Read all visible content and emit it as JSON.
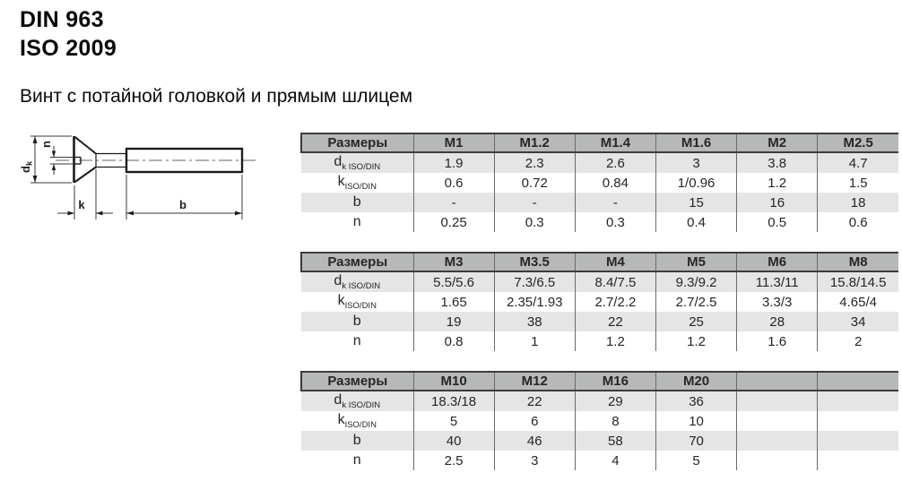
{
  "page": {
    "title_line1": "DIN 963",
    "title_line2": "ISO 2009",
    "subtitle": "Винт с потайной головкой и прямым шлицем"
  },
  "drawing": {
    "description": "countersunk-flat-head-slotted-screw-side-view",
    "labels": {
      "dk_main": "d",
      "dk_sub": "k",
      "n": "n",
      "k": "k",
      "b": "b"
    }
  },
  "colors": {
    "table_header_bg": "#b7b9b8",
    "table_alt_row_bg": "#e4e5e4",
    "table_border_dark": "#3c3c3c",
    "table_separator": "#6a6a6a",
    "text": "#262626"
  },
  "tables": [
    {
      "columns": [
        "Размеры",
        "M1",
        "M1.2",
        "M1.4",
        "M1.6",
        "M2",
        "M2.5"
      ],
      "rows": [
        {
          "label": {
            "main": "d",
            "sub": "k ISO/DIN"
          },
          "values": [
            "1.9",
            "2.3",
            "2.6",
            "3",
            "3.8",
            "4.7"
          ]
        },
        {
          "label": {
            "main": "k",
            "sub": "ISO/DIN"
          },
          "values": [
            "0.6",
            "0.72",
            "0.84",
            "1/0.96",
            "1.2",
            "1.5"
          ]
        },
        {
          "label": {
            "main": "b",
            "sub": ""
          },
          "values": [
            "-",
            "-",
            "-",
            "15",
            "16",
            "18"
          ]
        },
        {
          "label": {
            "main": "n",
            "sub": ""
          },
          "values": [
            "0.25",
            "0.3",
            "0.3",
            "0.4",
            "0.5",
            "0.6"
          ]
        }
      ]
    },
    {
      "columns": [
        "Размеры",
        "M3",
        "M3.5",
        "M4",
        "M5",
        "M6",
        "M8"
      ],
      "rows": [
        {
          "label": {
            "main": "d",
            "sub": "k ISO/DIN"
          },
          "values": [
            "5.5/5.6",
            "7.3/6.5",
            "8.4/7.5",
            "9.3/9.2",
            "11.3/11",
            "15.8/14.5"
          ]
        },
        {
          "label": {
            "main": "k",
            "sub": "ISO/DIN"
          },
          "values": [
            "1.65",
            "2.35/1.93",
            "2.7/2.2",
            "2.7/2.5",
            "3.3/3",
            "4.65/4"
          ]
        },
        {
          "label": {
            "main": "b",
            "sub": ""
          },
          "values": [
            "19",
            "38",
            "22",
            "25",
            "28",
            "34"
          ]
        },
        {
          "label": {
            "main": "n",
            "sub": ""
          },
          "values": [
            "0.8",
            "1",
            "1.2",
            "1.2",
            "1.6",
            "2"
          ]
        }
      ]
    },
    {
      "columns": [
        "Размеры",
        "M10",
        "M12",
        "M16",
        "M20",
        "",
        ""
      ],
      "rows": [
        {
          "label": {
            "main": "d",
            "sub": "k ISO/DIN"
          },
          "values": [
            "18.3/18",
            "22",
            "29",
            "36",
            "",
            ""
          ]
        },
        {
          "label": {
            "main": "k",
            "sub": "ISO/DIN"
          },
          "values": [
            "5",
            "6",
            "8",
            "10",
            "",
            ""
          ]
        },
        {
          "label": {
            "main": "b",
            "sub": ""
          },
          "values": [
            "40",
            "46",
            "58",
            "70",
            "",
            ""
          ]
        },
        {
          "label": {
            "main": "n",
            "sub": ""
          },
          "values": [
            "2.5",
            "3",
            "4",
            "5",
            "",
            ""
          ]
        }
      ]
    }
  ]
}
